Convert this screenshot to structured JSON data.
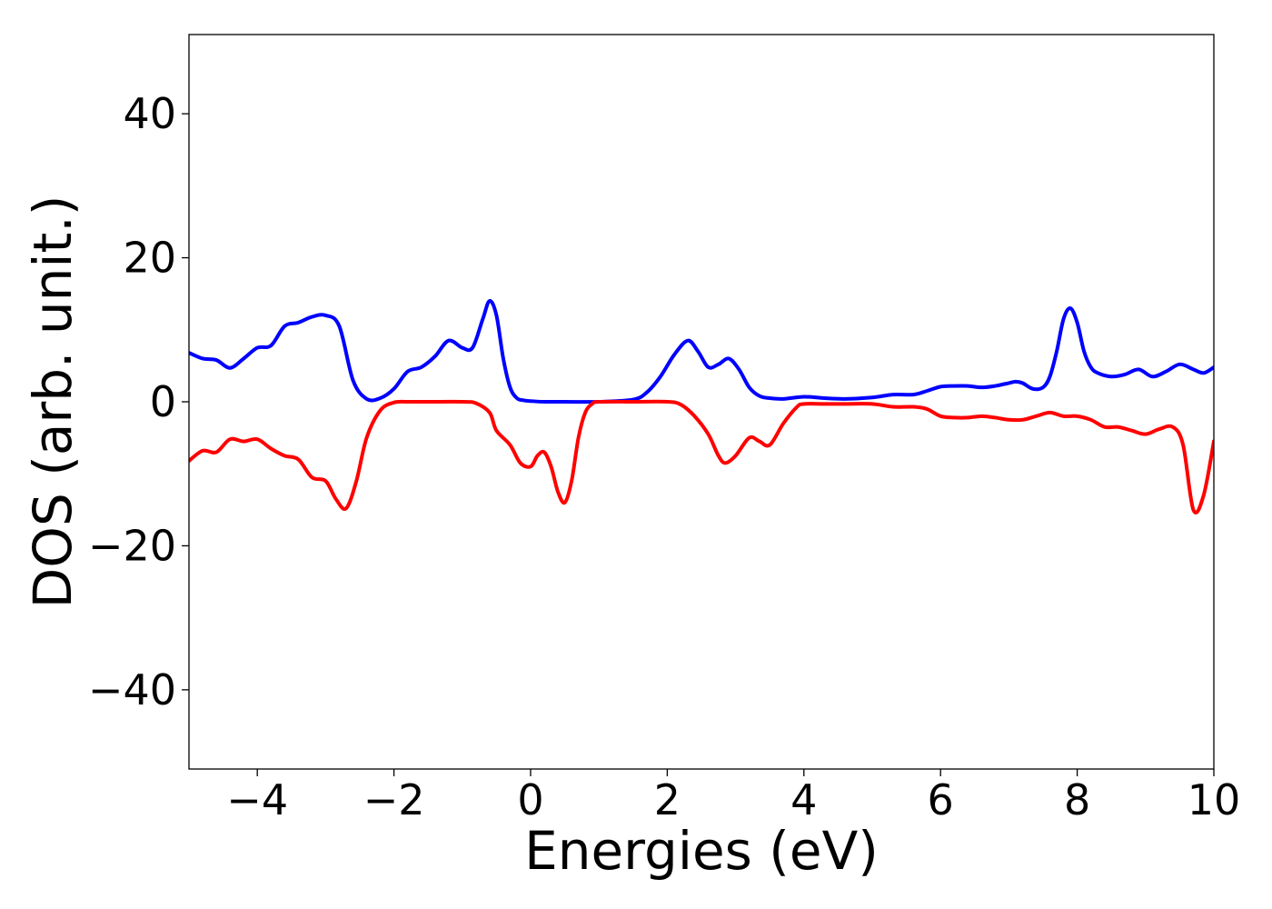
{
  "chart_data": {
    "type": "line",
    "title": "",
    "xlabel": "Energies (eV)",
    "ylabel": "DOS (arb. unit.)",
    "xlim": [
      -5,
      10
    ],
    "ylim": [
      -51,
      51
    ],
    "x_ticks": [
      -4,
      -2,
      0,
      2,
      4,
      6,
      8,
      10
    ],
    "x_tick_labels": [
      "−4",
      "−2",
      "0",
      "2",
      "4",
      "6",
      "8",
      "10"
    ],
    "y_ticks": [
      -40,
      -20,
      0,
      20,
      40
    ],
    "y_tick_labels": [
      "−40",
      "−20",
      "0",
      "20",
      "40"
    ],
    "grid": false,
    "legend": "none",
    "series": [
      {
        "color": "#0000ff",
        "x": [
          -5,
          -4.8,
          -4.6,
          -4.4,
          -4.2,
          -4.0,
          -3.8,
          -3.6,
          -3.4,
          -3.2,
          -3.0,
          -2.8,
          -2.6,
          -2.4,
          -2.2,
          -2.0,
          -1.8,
          -1.6,
          -1.4,
          -1.2,
          -1.0,
          -0.85,
          -0.7,
          -0.6,
          -0.5,
          -0.4,
          -0.3,
          -0.2,
          -0.1,
          0.0,
          0.2,
          0.5,
          1.0,
          1.5,
          1.7,
          1.9,
          2.1,
          2.3,
          2.45,
          2.6,
          2.75,
          2.9,
          3.05,
          3.2,
          3.35,
          3.5,
          3.7,
          4.0,
          4.3,
          4.6,
          5.0,
          5.3,
          5.6,
          5.8,
          6.0,
          6.2,
          6.4,
          6.6,
          6.8,
          7.0,
          7.1,
          7.2,
          7.35,
          7.5,
          7.6,
          7.7,
          7.8,
          7.9,
          8.0,
          8.1,
          8.2,
          8.3,
          8.5,
          8.7,
          8.9,
          9.1,
          9.3,
          9.5,
          9.7,
          9.85,
          10.0
        ],
        "y": [
          6.8,
          6.0,
          5.8,
          4.7,
          6.0,
          7.5,
          7.8,
          10.5,
          11.0,
          11.8,
          12.0,
          10.5,
          3.0,
          0.4,
          0.5,
          1.8,
          4.2,
          4.8,
          6.3,
          8.5,
          7.5,
          7.5,
          11.5,
          14.0,
          12.0,
          6.0,
          2.0,
          0.5,
          0.2,
          0.1,
          0.0,
          0.0,
          0.0,
          0.3,
          1.3,
          3.5,
          6.5,
          8.5,
          7.0,
          4.8,
          5.2,
          6.0,
          4.5,
          2.0,
          0.8,
          0.5,
          0.4,
          0.7,
          0.5,
          0.4,
          0.6,
          1.0,
          1.0,
          1.5,
          2.1,
          2.2,
          2.2,
          2.0,
          2.2,
          2.6,
          2.8,
          2.6,
          1.8,
          2.0,
          3.5,
          7.0,
          11.5,
          13.0,
          11.0,
          7.0,
          4.8,
          4.0,
          3.5,
          3.8,
          4.5,
          3.5,
          4.2,
          5.2,
          4.5,
          4.0,
          4.8
        ]
      },
      {
        "color": "#ff0000",
        "x": [
          -5,
          -4.8,
          -4.6,
          -4.4,
          -4.2,
          -4.0,
          -3.8,
          -3.6,
          -3.4,
          -3.2,
          -3.0,
          -2.85,
          -2.7,
          -2.55,
          -2.4,
          -2.2,
          -2.0,
          -1.8,
          -1.5,
          -1.0,
          -0.8,
          -0.6,
          -0.5,
          -0.3,
          -0.15,
          0.0,
          0.1,
          0.2,
          0.3,
          0.4,
          0.5,
          0.6,
          0.7,
          0.8,
          0.9,
          1.0,
          1.5,
          2.0,
          2.2,
          2.4,
          2.6,
          2.75,
          2.85,
          3.0,
          3.2,
          3.35,
          3.5,
          3.7,
          3.9,
          4.0,
          4.3,
          4.6,
          5.0,
          5.3,
          5.6,
          5.8,
          6.0,
          6.2,
          6.4,
          6.6,
          6.8,
          7.0,
          7.2,
          7.4,
          7.6,
          7.8,
          8.0,
          8.2,
          8.4,
          8.6,
          8.8,
          9.0,
          9.2,
          9.4,
          9.55,
          9.7,
          9.85,
          10.0
        ],
        "y": [
          -8.2,
          -6.8,
          -7.0,
          -5.2,
          -5.5,
          -5.2,
          -6.5,
          -7.5,
          -8.0,
          -10.5,
          -11.0,
          -13.5,
          -14.8,
          -11.0,
          -5.0,
          -1.2,
          -0.1,
          0.0,
          0.0,
          0.0,
          -0.2,
          -1.5,
          -4.0,
          -6.0,
          -8.5,
          -9.0,
          -7.5,
          -7.0,
          -9.0,
          -12.5,
          -14.0,
          -11.0,
          -5.0,
          -1.5,
          -0.3,
          0.0,
          0.0,
          0.0,
          -0.4,
          -2.0,
          -4.5,
          -7.5,
          -8.5,
          -7.5,
          -5.0,
          -5.5,
          -6.0,
          -3.0,
          -0.7,
          -0.3,
          -0.3,
          -0.3,
          -0.3,
          -0.7,
          -0.7,
          -1.0,
          -2.0,
          -2.2,
          -2.2,
          -2.0,
          -2.2,
          -2.5,
          -2.5,
          -2.0,
          -1.5,
          -2.0,
          -2.0,
          -2.5,
          -3.5,
          -3.5,
          -4.0,
          -4.5,
          -3.8,
          -3.5,
          -6.0,
          -15.0,
          -13.0,
          -5.5
        ]
      }
    ]
  }
}
